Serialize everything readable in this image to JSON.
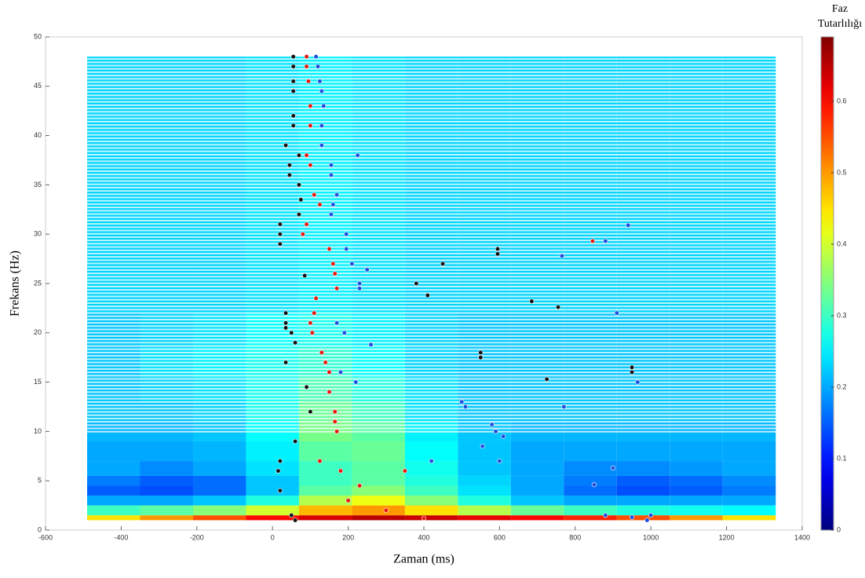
{
  "chart_data": {
    "type": "heatmap",
    "xlabel": "Zaman (ms)",
    "ylabel": "Frekans (Hz)",
    "colorbar_title": [
      "Faz",
      "Tutarlılığı"
    ],
    "xlim": [
      -600,
      1400
    ],
    "xticks": [
      -600,
      -400,
      -200,
      0,
      200,
      400,
      600,
      800,
      1000,
      1200,
      1400
    ],
    "ylim": [
      0,
      50
    ],
    "yticks": [
      0,
      5,
      10,
      15,
      20,
      25,
      30,
      35,
      40,
      45,
      50
    ],
    "clim": [
      0,
      0.69
    ],
    "cticks": [
      0,
      0.1,
      0.2,
      0.3,
      0.4,
      0.5,
      0.6
    ],
    "colormap": "jet",
    "x": [
      -420,
      -280,
      -140,
      0,
      140,
      280,
      420,
      560,
      700,
      840,
      980,
      1120,
      1260
    ],
    "y": [
      1,
      2,
      3,
      4,
      5,
      6,
      8,
      10,
      12,
      14,
      17,
      20,
      24,
      28,
      32,
      36,
      40,
      44,
      48
    ],
    "z": [
      [
        0.45,
        0.5,
        0.55,
        0.6,
        0.63,
        0.65,
        0.64,
        0.62,
        0.6,
        0.58,
        0.55,
        0.5,
        0.45
      ],
      [
        0.3,
        0.32,
        0.35,
        0.4,
        0.48,
        0.5,
        0.45,
        0.38,
        0.33,
        0.3,
        0.28,
        0.27,
        0.26
      ],
      [
        0.2,
        0.2,
        0.22,
        0.28,
        0.38,
        0.42,
        0.35,
        0.28,
        0.22,
        0.2,
        0.2,
        0.2,
        0.2
      ],
      [
        0.15,
        0.14,
        0.16,
        0.22,
        0.32,
        0.35,
        0.3,
        0.24,
        0.2,
        0.16,
        0.14,
        0.15,
        0.17
      ],
      [
        0.17,
        0.15,
        0.16,
        0.22,
        0.3,
        0.32,
        0.28,
        0.23,
        0.2,
        0.17,
        0.15,
        0.16,
        0.18
      ],
      [
        0.2,
        0.18,
        0.2,
        0.24,
        0.3,
        0.32,
        0.27,
        0.22,
        0.2,
        0.18,
        0.18,
        0.19,
        0.2
      ],
      [
        0.2,
        0.2,
        0.21,
        0.25,
        0.32,
        0.33,
        0.26,
        0.22,
        0.2,
        0.2,
        0.2,
        0.2,
        0.2
      ],
      [
        0.21,
        0.21,
        0.22,
        0.26,
        0.34,
        0.32,
        0.25,
        0.22,
        0.21,
        0.21,
        0.21,
        0.21,
        0.21
      ],
      [
        0.22,
        0.22,
        0.23,
        0.27,
        0.33,
        0.3,
        0.24,
        0.22,
        0.22,
        0.22,
        0.22,
        0.22,
        0.22
      ],
      [
        0.22,
        0.23,
        0.24,
        0.27,
        0.31,
        0.28,
        0.24,
        0.22,
        0.22,
        0.22,
        0.22,
        0.22,
        0.22
      ],
      [
        0.22,
        0.24,
        0.25,
        0.27,
        0.29,
        0.26,
        0.23,
        0.22,
        0.22,
        0.22,
        0.22,
        0.22,
        0.22
      ],
      [
        0.22,
        0.23,
        0.24,
        0.26,
        0.27,
        0.25,
        0.23,
        0.22,
        0.22,
        0.22,
        0.22,
        0.22,
        0.22
      ],
      [
        0.23,
        0.23,
        0.23,
        0.24,
        0.25,
        0.24,
        0.23,
        0.23,
        0.23,
        0.23,
        0.23,
        0.23,
        0.23
      ],
      [
        0.23,
        0.23,
        0.23,
        0.24,
        0.25,
        0.24,
        0.23,
        0.23,
        0.23,
        0.23,
        0.23,
        0.23,
        0.23
      ],
      [
        0.23,
        0.23,
        0.23,
        0.24,
        0.25,
        0.24,
        0.23,
        0.23,
        0.23,
        0.23,
        0.23,
        0.23,
        0.23
      ],
      [
        0.23,
        0.23,
        0.23,
        0.24,
        0.25,
        0.24,
        0.23,
        0.23,
        0.23,
        0.23,
        0.23,
        0.23,
        0.23
      ],
      [
        0.23,
        0.23,
        0.23,
        0.24,
        0.25,
        0.24,
        0.23,
        0.23,
        0.23,
        0.23,
        0.23,
        0.23,
        0.23
      ],
      [
        0.23,
        0.23,
        0.23,
        0.24,
        0.25,
        0.24,
        0.23,
        0.23,
        0.23,
        0.23,
        0.23,
        0.23,
        0.23
      ],
      [
        0.23,
        0.23,
        0.23,
        0.24,
        0.25,
        0.24,
        0.23,
        0.23,
        0.23,
        0.23,
        0.23,
        0.23,
        0.23
      ]
    ],
    "points": [
      {
        "color": "#111111",
        "x": [
          55,
          55,
          55,
          55,
          55,
          55,
          35,
          70,
          45,
          45,
          70,
          75,
          70,
          20,
          20,
          20,
          85,
          35,
          35,
          35,
          50,
          60,
          35,
          550,
          550,
          380,
          410,
          450,
          595,
          595,
          685,
          755,
          725,
          950,
          950,
          90,
          100,
          60,
          20,
          15,
          20,
          50,
          60
        ],
        "y": [
          48,
          47,
          45.5,
          44.5,
          42,
          41,
          39,
          38,
          37,
          36,
          35,
          33.5,
          32,
          31,
          30,
          29,
          25.8,
          22,
          21,
          20.5,
          20,
          19,
          17,
          18,
          17.5,
          25,
          23.8,
          27,
          28.5,
          28,
          23.2,
          22.6,
          15.3,
          16.5,
          16,
          14.5,
          12,
          9,
          7,
          6,
          4,
          1.5,
          1
        ]
      },
      {
        "color": "#e8190e",
        "x": [
          90,
          90,
          95,
          100,
          100,
          90,
          100,
          110,
          125,
          90,
          80,
          150,
          160,
          165,
          170,
          115,
          110,
          100,
          105,
          130,
          140,
          150,
          150,
          165,
          165,
          170,
          125,
          180,
          350,
          230,
          200,
          300,
          400,
          846
        ],
        "y": [
          48,
          47,
          45.5,
          43,
          41,
          38,
          37,
          34,
          33,
          31,
          30,
          28.5,
          27,
          26,
          24.5,
          23.5,
          22,
          21,
          20,
          18,
          17,
          16,
          14,
          12,
          11,
          10,
          7,
          6,
          6,
          4.5,
          3,
          2,
          1.2,
          29.3
        ]
      },
      {
        "color": "#1f4fe0",
        "x": [
          115,
          120,
          125,
          130,
          135,
          130,
          130,
          225,
          155,
          155,
          170,
          160,
          155,
          195,
          195,
          210,
          250,
          230,
          230,
          170,
          190,
          260,
          180,
          220,
          500,
          510,
          580,
          590,
          610,
          555,
          770,
          765,
          880,
          940,
          910,
          965,
          600,
          420,
          900,
          850,
          880,
          950,
          1000,
          990
        ],
        "y": [
          48,
          47,
          45.5,
          44.5,
          43,
          41,
          39,
          38,
          37,
          36,
          34,
          33,
          32,
          30,
          28.5,
          27,
          26.4,
          25,
          24.5,
          21,
          20,
          18.8,
          16,
          15,
          13,
          12.5,
          10.7,
          10,
          9.5,
          8.5,
          12.5,
          27.8,
          29.3,
          30.9,
          22,
          15,
          7,
          7,
          6.3,
          4.6,
          1.5,
          1.3,
          1.5,
          1
        ]
      }
    ]
  }
}
